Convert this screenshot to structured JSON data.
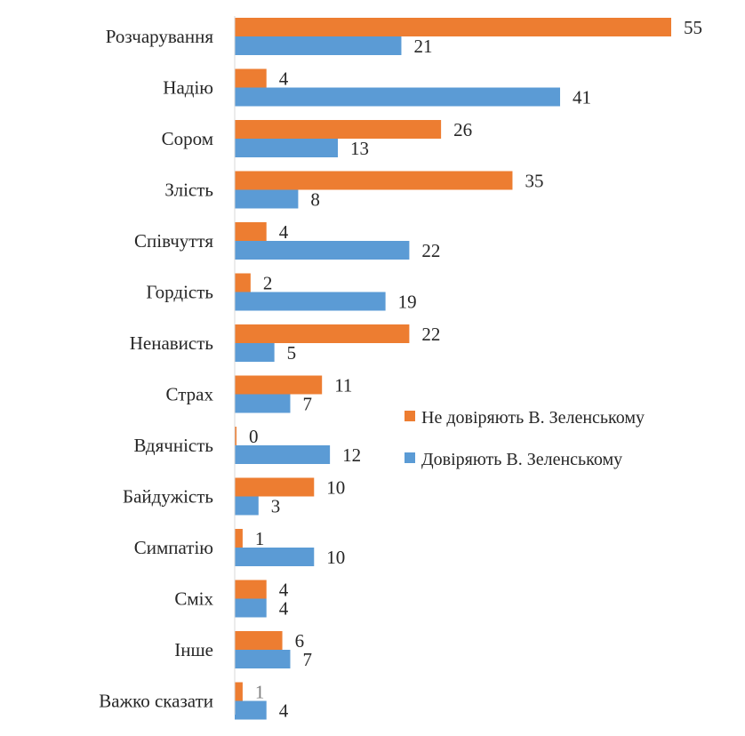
{
  "chart_data": {
    "type": "bar",
    "orientation": "horizontal",
    "categories": [
      "Розчарування",
      "Надію",
      "Сором",
      "Злість",
      "Співчуття",
      "Гордість",
      "Ненависть",
      "Страх",
      "Вдячність",
      "Байдужість",
      "Симпатію",
      "Сміх",
      "Інше",
      "Важко сказати"
    ],
    "series": [
      {
        "name": "Не довіряють В. Зеленському",
        "color": "#ed7d31",
        "values": [
          55,
          4,
          26,
          35,
          4,
          2,
          22,
          11,
          0,
          10,
          1,
          4,
          6,
          1
        ]
      },
      {
        "name": "Довіряють В. Зеленському",
        "color": "#5b9bd5",
        "values": [
          21,
          41,
          13,
          8,
          22,
          19,
          5,
          7,
          12,
          3,
          10,
          4,
          7,
          4
        ]
      }
    ],
    "xlim": [
      0,
      55
    ],
    "grid": false,
    "legend_position": "right"
  }
}
